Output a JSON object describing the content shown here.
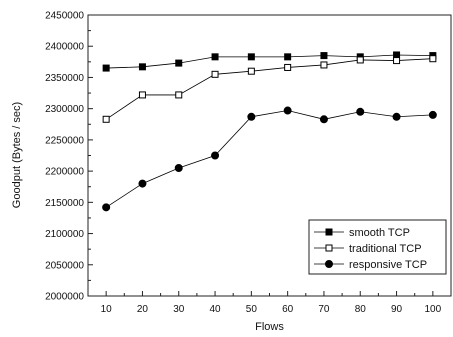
{
  "chart_data": {
    "type": "line",
    "title": "",
    "xlabel": "Flows",
    "ylabel": "Goodput (Bytes / sec)",
    "x": [
      10,
      20,
      30,
      40,
      50,
      60,
      70,
      80,
      90,
      100
    ],
    "xlim": [
      5,
      105
    ],
    "ylim": [
      2000000,
      2450000
    ],
    "xticks": [
      10,
      20,
      30,
      40,
      50,
      60,
      70,
      80,
      90,
      100
    ],
    "yticks": [
      2000000,
      2050000,
      2100000,
      2150000,
      2200000,
      2250000,
      2300000,
      2350000,
      2400000,
      2450000
    ],
    "grid": false,
    "legend_position": "bottom-right",
    "series": [
      {
        "name": "smooth TCP",
        "marker": "filled-square",
        "color": "#000000",
        "values": [
          2365000,
          2367000,
          2373000,
          2383000,
          2383000,
          2383000,
          2385000,
          2383000,
          2386000,
          2385000
        ]
      },
      {
        "name": "traditional TCP",
        "marker": "hollow-square",
        "color": "#000000",
        "values": [
          2283000,
          2322000,
          2322000,
          2355000,
          2360000,
          2366000,
          2370000,
          2378000,
          2377000,
          2380000
        ]
      },
      {
        "name": "responsive TCP",
        "marker": "filled-circle",
        "color": "#000000",
        "values": [
          2142000,
          2180000,
          2205000,
          2225000,
          2287000,
          2297000,
          2283000,
          2295000,
          2287000,
          2290000
        ]
      }
    ]
  }
}
